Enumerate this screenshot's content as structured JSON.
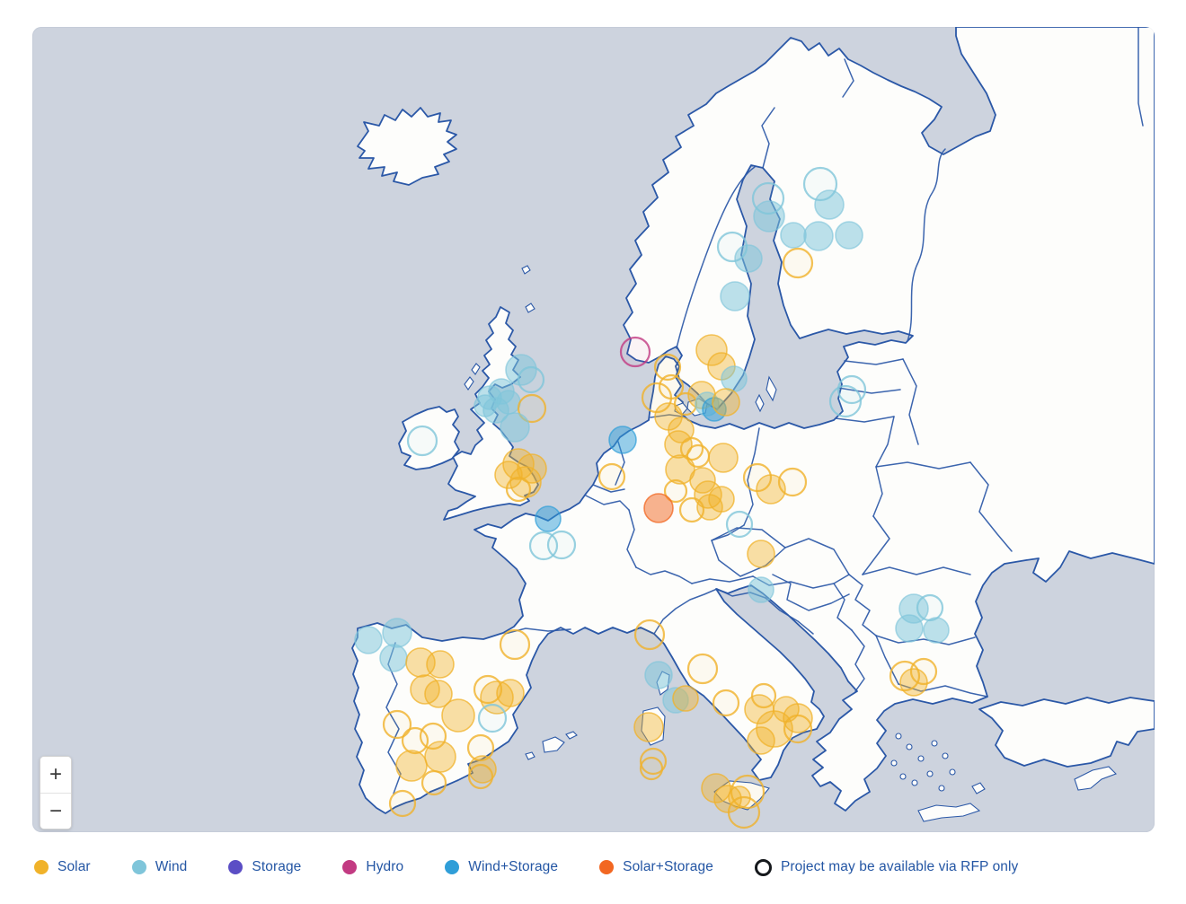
{
  "map": {
    "colors": {
      "sea": "#cdd3de",
      "land": "#fdfdfb",
      "border": "#2b58a7"
    },
    "zoom_in_label": "+",
    "zoom_out_label": "−"
  },
  "legend": {
    "text_color": "#2456a4",
    "items": [
      {
        "key": "solar",
        "label": "Solar",
        "color": "#f0b22a"
      },
      {
        "key": "wind",
        "label": "Wind",
        "color": "#7fc5da"
      },
      {
        "key": "storage",
        "label": "Storage",
        "color": "#5b4ec5"
      },
      {
        "key": "hydro",
        "label": "Hydro",
        "color": "#c23a82"
      },
      {
        "key": "windstorage",
        "label": "Wind+Storage",
        "color": "#2f9ed8"
      },
      {
        "key": "solarstorage",
        "label": "Solar+Storage",
        "color": "#f26722"
      },
      {
        "key": "rfp",
        "label": "Project may be available via RFP only",
        "color": "#15181c",
        "outline": true
      }
    ]
  },
  "marker_styles": {
    "s": {
      "type": "solar",
      "color": "#f0b22a",
      "fillOpacity": 0.42,
      "strokeOpacity": 0.75
    },
    "w": {
      "type": "wind",
      "color": "#7fc5da",
      "fillOpacity": 0.52,
      "strokeOpacity": 0.65
    },
    "ws": {
      "type": "windstorage",
      "color": "#2f9ed8",
      "fillOpacity": 0.5,
      "strokeOpacity": 0.7
    },
    "ss": {
      "type": "solarstorage",
      "color": "#f26722",
      "fillOpacity": 0.5,
      "strokeOpacity": 0.75
    },
    "h": {
      "type": "hydro",
      "color": "#c23a82",
      "fillOpacity": 0.0,
      "strokeOpacity": 0.85
    }
  },
  "markers": [
    [
      "w",
      913,
      205,
      18,
      1
    ],
    [
      "w",
      855,
      221,
      17,
      1
    ],
    [
      "w",
      923,
      228,
      16,
      0
    ],
    [
      "w",
      856,
      241,
      17,
      0
    ],
    [
      "w",
      883,
      262,
      14,
      0
    ],
    [
      "w",
      911,
      263,
      16,
      0
    ],
    [
      "w",
      945,
      262,
      15,
      0
    ],
    [
      "w",
      815,
      275,
      16,
      1
    ],
    [
      "w",
      833,
      288,
      15,
      0
    ],
    [
      "s",
      888,
      293,
      16,
      1
    ],
    [
      "w",
      818,
      330,
      16,
      0
    ],
    [
      "h",
      707,
      392,
      16,
      1
    ],
    [
      "s",
      792,
      390,
      17,
      0
    ],
    [
      "s",
      803,
      408,
      15,
      0
    ],
    [
      "w",
      817,
      422,
      14,
      0
    ],
    [
      "s",
      743,
      409,
      14,
      1
    ],
    [
      "s",
      747,
      431,
      13,
      1
    ],
    [
      "s",
      731,
      443,
      16,
      1
    ],
    [
      "s",
      744,
      464,
      15,
      0
    ],
    [
      "s",
      758,
      479,
      14,
      0
    ],
    [
      "s",
      763,
      450,
      12,
      1
    ],
    [
      "s",
      781,
      440,
      15,
      0
    ],
    [
      "w",
      787,
      450,
      13,
      0
    ],
    [
      "ws",
      795,
      456,
      13,
      0
    ],
    [
      "s",
      808,
      448,
      15,
      0
    ],
    [
      "w",
      948,
      434,
      15,
      1
    ],
    [
      "w",
      941,
      447,
      17,
      1
    ],
    [
      "w",
      580,
      412,
      17,
      0
    ],
    [
      "w",
      591,
      423,
      14,
      1
    ],
    [
      "w",
      558,
      436,
      14,
      0
    ],
    [
      "w",
      545,
      443,
      13,
      0
    ],
    [
      "w",
      566,
      448,
      13,
      0
    ],
    [
      "w",
      552,
      457,
      14,
      0
    ],
    [
      "w",
      540,
      452,
      12,
      0
    ],
    [
      "s",
      592,
      455,
      15,
      1
    ],
    [
      "w",
      573,
      476,
      16,
      0
    ],
    [
      "w",
      470,
      491,
      16,
      1
    ],
    [
      "s",
      577,
      517,
      17,
      0
    ],
    [
      "s",
      592,
      522,
      16,
      0
    ],
    [
      "s",
      566,
      529,
      15,
      0
    ],
    [
      "s",
      585,
      537,
      17,
      0
    ],
    [
      "s",
      577,
      545,
      13,
      1
    ],
    [
      "ws",
      610,
      578,
      14,
      0
    ],
    [
      "w",
      605,
      608,
      15,
      1
    ],
    [
      "w",
      625,
      607,
      15,
      1
    ],
    [
      "ws",
      693,
      490,
      15,
      0
    ],
    [
      "s",
      681,
      531,
      14,
      1
    ],
    [
      "s",
      755,
      495,
      15,
      0
    ],
    [
      "s",
      770,
      500,
      12,
      1
    ],
    [
      "s",
      777,
      508,
      12,
      1
    ],
    [
      "s",
      805,
      510,
      16,
      0
    ],
    [
      "s",
      757,
      523,
      16,
      0
    ],
    [
      "s",
      752,
      547,
      12,
      1
    ],
    [
      "s",
      782,
      535,
      14,
      0
    ],
    [
      "s",
      788,
      551,
      15,
      0
    ],
    [
      "s",
      790,
      565,
      14,
      0
    ],
    [
      "s",
      770,
      568,
      13,
      1
    ],
    [
      "s",
      803,
      556,
      14,
      0
    ],
    [
      "ss",
      733,
      566,
      16,
      0
    ],
    [
      "s",
      843,
      532,
      15,
      1
    ],
    [
      "s",
      858,
      545,
      16,
      0
    ],
    [
      "s",
      882,
      537,
      15,
      1
    ],
    [
      "w",
      823,
      584,
      14,
      1
    ],
    [
      "s",
      847,
      617,
      15,
      0
    ],
    [
      "w",
      847,
      657,
      14,
      0
    ],
    [
      "w",
      1017,
      678,
      16,
      0
    ],
    [
      "w",
      1035,
      677,
      14,
      1
    ],
    [
      "w",
      1012,
      700,
      15,
      0
    ],
    [
      "w",
      1042,
      702,
      14,
      0
    ],
    [
      "s",
      1007,
      753,
      16,
      1
    ],
    [
      "s",
      1028,
      748,
      14,
      1
    ],
    [
      "s",
      1017,
      760,
      15,
      0
    ],
    [
      "w",
      410,
      713,
      15,
      0
    ],
    [
      "w",
      442,
      705,
      16,
      0
    ],
    [
      "w",
      438,
      733,
      15,
      0
    ],
    [
      "s",
      468,
      738,
      16,
      0
    ],
    [
      "s",
      490,
      740,
      15,
      0
    ],
    [
      "s",
      473,
      768,
      16,
      0
    ],
    [
      "s",
      488,
      773,
      15,
      0
    ],
    [
      "s",
      573,
      718,
      16,
      1
    ],
    [
      "s",
      543,
      768,
      15,
      1
    ],
    [
      "s",
      553,
      777,
      18,
      0
    ],
    [
      "s",
      568,
      772,
      15,
      0
    ],
    [
      "s",
      510,
      797,
      18,
      0
    ],
    [
      "w",
      548,
      800,
      15,
      1
    ],
    [
      "s",
      442,
      807,
      15,
      1
    ],
    [
      "s",
      462,
      825,
      14,
      1
    ],
    [
      "s",
      482,
      820,
      14,
      1
    ],
    [
      "s",
      490,
      843,
      17,
      0
    ],
    [
      "s",
      458,
      853,
      17,
      0
    ],
    [
      "s",
      483,
      872,
      13,
      1
    ],
    [
      "s",
      535,
      833,
      14,
      1
    ],
    [
      "s",
      537,
      857,
      15,
      0
    ],
    [
      "s",
      535,
      865,
      13,
      1
    ],
    [
      "s",
      448,
      895,
      14,
      1
    ],
    [
      "s",
      723,
      707,
      16,
      1
    ],
    [
      "w",
      733,
      752,
      15,
      0
    ],
    [
      "s",
      782,
      745,
      16,
      1
    ],
    [
      "w",
      752,
      780,
      14,
      0
    ],
    [
      "s",
      763,
      778,
      14,
      0
    ],
    [
      "s",
      808,
      783,
      14,
      1
    ],
    [
      "s",
      722,
      810,
      16,
      0
    ],
    [
      "s",
      727,
      848,
      14,
      1
    ],
    [
      "s",
      725,
      856,
      12,
      1
    ],
    [
      "s",
      845,
      790,
      16,
      0
    ],
    [
      "s",
      850,
      775,
      13,
      1
    ],
    [
      "s",
      862,
      812,
      20,
      0
    ],
    [
      "s",
      875,
      790,
      14,
      0
    ],
    [
      "s",
      888,
      800,
      16,
      0
    ],
    [
      "s",
      888,
      812,
      15,
      1
    ],
    [
      "s",
      847,
      825,
      15,
      0
    ],
    [
      "s",
      797,
      878,
      16,
      0
    ],
    [
      "s",
      810,
      890,
      15,
      0
    ],
    [
      "s",
      832,
      882,
      18,
      1
    ],
    [
      "s",
      828,
      905,
      17,
      1
    ],
    [
      "s",
      823,
      888,
      12,
      0
    ]
  ]
}
